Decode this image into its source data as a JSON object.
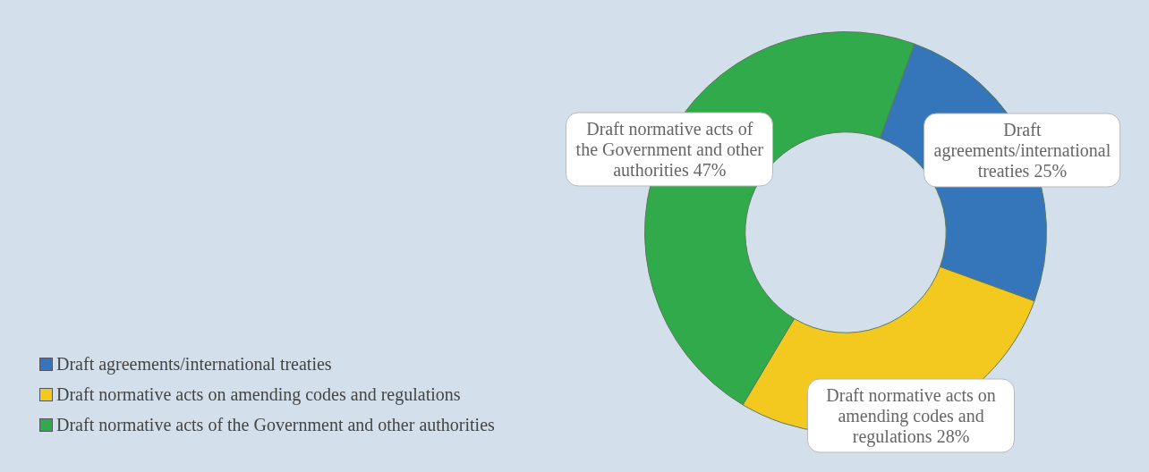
{
  "chart_data": {
    "type": "donut",
    "categories": [
      "Draft agreements/international treaties",
      "Draft normative acts on amending codes and regulations",
      "Draft normative acts of the Government and other authorities"
    ],
    "values": [
      25,
      28,
      47
    ],
    "value_labels": [
      "25%",
      "28%",
      "47%"
    ],
    "colors": [
      "#3575b9",
      "#f3c81f",
      "#30aa4b"
    ],
    "legend": "left"
  }
}
